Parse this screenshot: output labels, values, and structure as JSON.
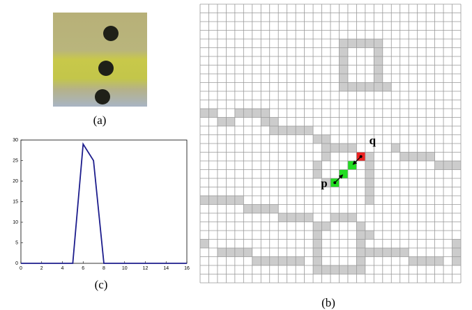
{
  "labels": {
    "a": "(a)",
    "b": "(b)",
    "c": "(c)"
  },
  "grid_labels": {
    "p": "p",
    "q": "q"
  },
  "chart_data": {
    "type": "line",
    "x": [
      0,
      1,
      2,
      3,
      4,
      5,
      6,
      7,
      8,
      9,
      10,
      11,
      12,
      13,
      14,
      15,
      16
    ],
    "values": [
      0,
      0,
      0,
      0,
      0,
      0,
      29,
      25,
      0,
      0,
      0,
      0,
      0,
      0,
      0,
      0,
      0
    ],
    "color": "#1c1c8c",
    "xlim": [
      0,
      16
    ],
    "xticks": [
      0,
      2,
      4,
      6,
      8,
      10,
      12,
      14,
      16
    ],
    "ylim": [
      0,
      30
    ],
    "yticks": [
      0,
      5,
      10,
      15,
      20,
      25,
      30
    ]
  }
}
